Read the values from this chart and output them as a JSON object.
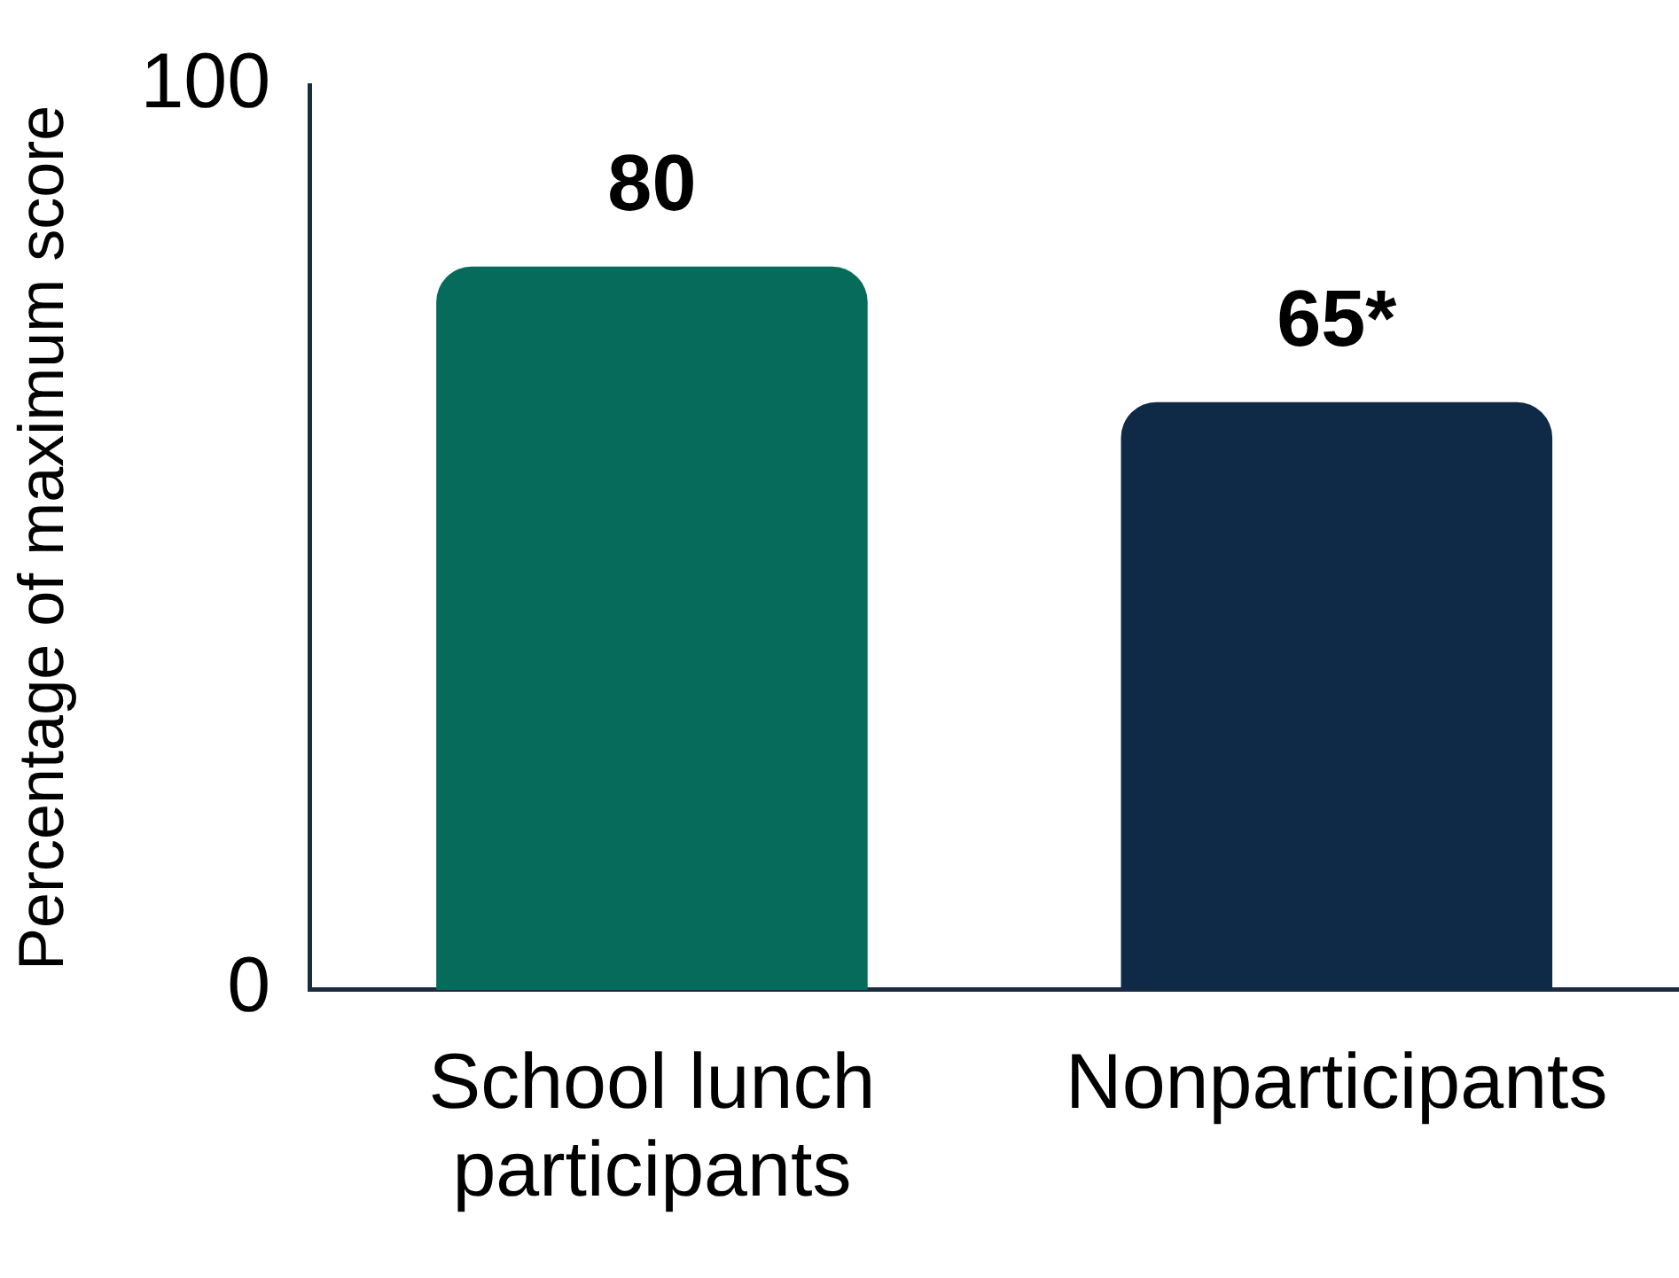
{
  "chart_data": {
    "type": "bar",
    "ylabel": "Percentage of maximum score",
    "categories": [
      "School lunch participants",
      "Nonparticipants"
    ],
    "values": [
      80,
      65
    ],
    "colors": [
      "#076b5c",
      "#0e2a47"
    ],
    "ylim": [
      0,
      100
    ],
    "yticks": [
      0,
      100
    ],
    "value_labels": [
      "80",
      "65*"
    ]
  }
}
